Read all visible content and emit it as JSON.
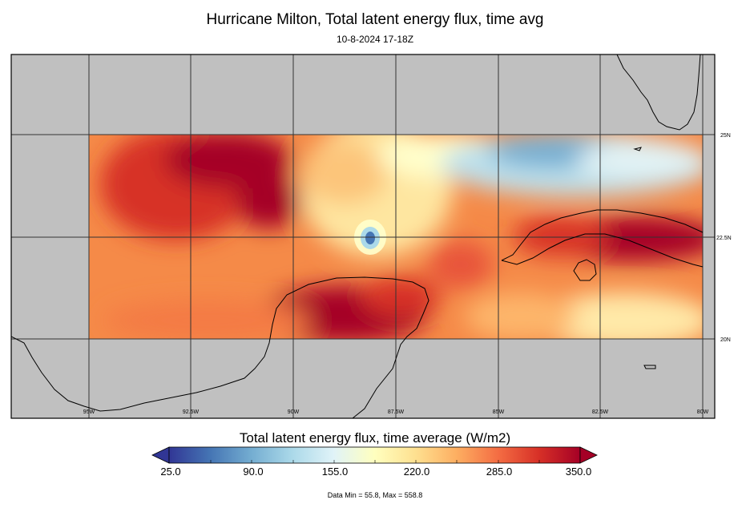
{
  "title": "Hurricane Milton, Total latent energy flux, time avg",
  "subtitle": "10-8-2024 17-18Z",
  "map": {
    "lon_labels": [
      "95W",
      "92.5W",
      "90W",
      "87.5W",
      "85W",
      "82.5W",
      "80W"
    ],
    "lat_labels": [
      "25N",
      "22.5N",
      "20N"
    ],
    "ocean_color": "#c0c0c0",
    "coastline_color": "#000000",
    "grid_color": "#333333"
  },
  "colorbar": {
    "title": "Total latent energy flux, time average (W/m2)",
    "ticks": [
      "25.0",
      "90.0",
      "155.0",
      "220.0",
      "285.0",
      "350.0"
    ],
    "colormap": [
      "#313695",
      "#4575b4",
      "#74add1",
      "#abd9e9",
      "#e0f3f8",
      "#ffffbf",
      "#fee090",
      "#fdae61",
      "#f46d43",
      "#d73027",
      "#a50026"
    ],
    "extend": "both"
  },
  "data_range": "Data Min = 55.8, Max = 558.8"
}
